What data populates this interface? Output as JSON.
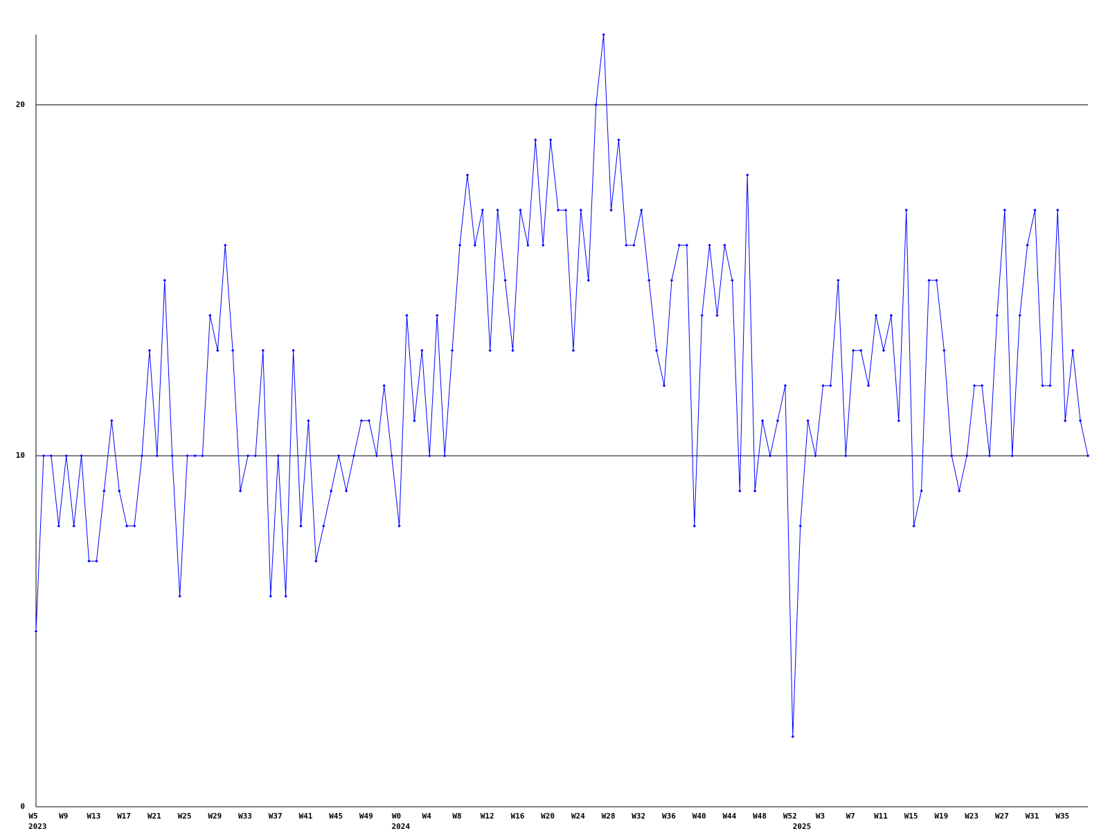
{
  "chart_data": {
    "type": "line",
    "color": "#0000ff",
    "categories": [
      "W5",
      null,
      null,
      null,
      "W9",
      null,
      null,
      null,
      "W13",
      null,
      null,
      null,
      "W17",
      null,
      null,
      null,
      "W21",
      null,
      null,
      null,
      "W25",
      null,
      null,
      null,
      "W29",
      null,
      null,
      null,
      "W33",
      null,
      null,
      null,
      "W37",
      null,
      null,
      null,
      "W41",
      null,
      null,
      null,
      "W45",
      null,
      null,
      null,
      "W49",
      null,
      null,
      null,
      "W0",
      null,
      null,
      null,
      "W4",
      null,
      null,
      null,
      "W8",
      null,
      null,
      null,
      "W12",
      null,
      null,
      null,
      "W16",
      null,
      null,
      null,
      "W20",
      null,
      null,
      null,
      "W24",
      null,
      null,
      null,
      "W28",
      null,
      null,
      null,
      "W32",
      null,
      null,
      null,
      "W36",
      null,
      null,
      null,
      "W40",
      null,
      null,
      null,
      "W44",
      null,
      null,
      null,
      "W48",
      null,
      null,
      null,
      "W52",
      null,
      null,
      null,
      "W3",
      null,
      null,
      null,
      "W7",
      null,
      null,
      null,
      "W11",
      null,
      null,
      null,
      "W15",
      null,
      null,
      null,
      "W19",
      null,
      null,
      null,
      "W23",
      null,
      null,
      null,
      "W27",
      null,
      null,
      null,
      "W31",
      null,
      null,
      null,
      "W35",
      null,
      null,
      null
    ],
    "category_years": [
      "2023",
      null,
      null,
      null,
      null,
      null,
      null,
      null,
      null,
      null,
      null,
      null,
      null,
      null,
      null,
      null,
      null,
      null,
      null,
      null,
      null,
      null,
      null,
      null,
      null,
      null,
      null,
      null,
      null,
      null,
      null,
      null,
      null,
      null,
      null,
      null,
      null,
      null,
      null,
      null,
      null,
      null,
      null,
      null,
      null,
      null,
      null,
      null,
      "2024",
      null,
      null,
      null,
      null,
      null,
      null,
      null,
      null,
      null,
      null,
      null,
      null,
      null,
      null,
      null,
      null,
      null,
      null,
      null,
      null,
      null,
      null,
      null,
      null,
      null,
      null,
      null,
      null,
      null,
      null,
      null,
      null,
      null,
      null,
      null,
      null,
      null,
      null,
      null,
      null,
      null,
      null,
      null,
      null,
      null,
      null,
      null,
      null,
      null,
      null,
      null,
      null,
      "2025",
      null,
      null,
      null,
      null,
      null,
      null,
      null,
      null,
      null,
      null,
      null,
      null,
      null,
      null,
      null,
      null,
      null,
      null,
      null,
      null,
      null,
      null,
      null,
      null,
      null,
      null,
      null,
      null,
      null,
      null,
      null,
      null,
      null,
      null,
      null,
      null,
      null,
      null
    ],
    "values": [
      5,
      10,
      10,
      8,
      10,
      8,
      10,
      7,
      7,
      9,
      11,
      9,
      8,
      8,
      10,
      13,
      10,
      15,
      10,
      6,
      10,
      10,
      10,
      14,
      13,
      16,
      13,
      9,
      10,
      10,
      13,
      6,
      10,
      6,
      13,
      8,
      11,
      7,
      8,
      9,
      10,
      9,
      10,
      11,
      11,
      10,
      12,
      10,
      8,
      14,
      11,
      13,
      10,
      14,
      10,
      13,
      16,
      18,
      16,
      17,
      13,
      17,
      15,
      13,
      17,
      16,
      19,
      16,
      19,
      17,
      17,
      13,
      17,
      15,
      20,
      22,
      17,
      19,
      16,
      16,
      17,
      15,
      13,
      12,
      15,
      16,
      16,
      8,
      14,
      16,
      14,
      16,
      15,
      9,
      18,
      9,
      11,
      10,
      11,
      12,
      2,
      8,
      11,
      10,
      12,
      12,
      15,
      10,
      13,
      13,
      12,
      14,
      13,
      14,
      11,
      17,
      8,
      9,
      15,
      15,
      13,
      10,
      9,
      10,
      12,
      12,
      10,
      14,
      17,
      10,
      14,
      16,
      17,
      12,
      12,
      17,
      11,
      13,
      11,
      10
    ],
    "ylim": [
      0,
      22
    ],
    "yticks": [
      0,
      10,
      20
    ],
    "grid": true
  }
}
